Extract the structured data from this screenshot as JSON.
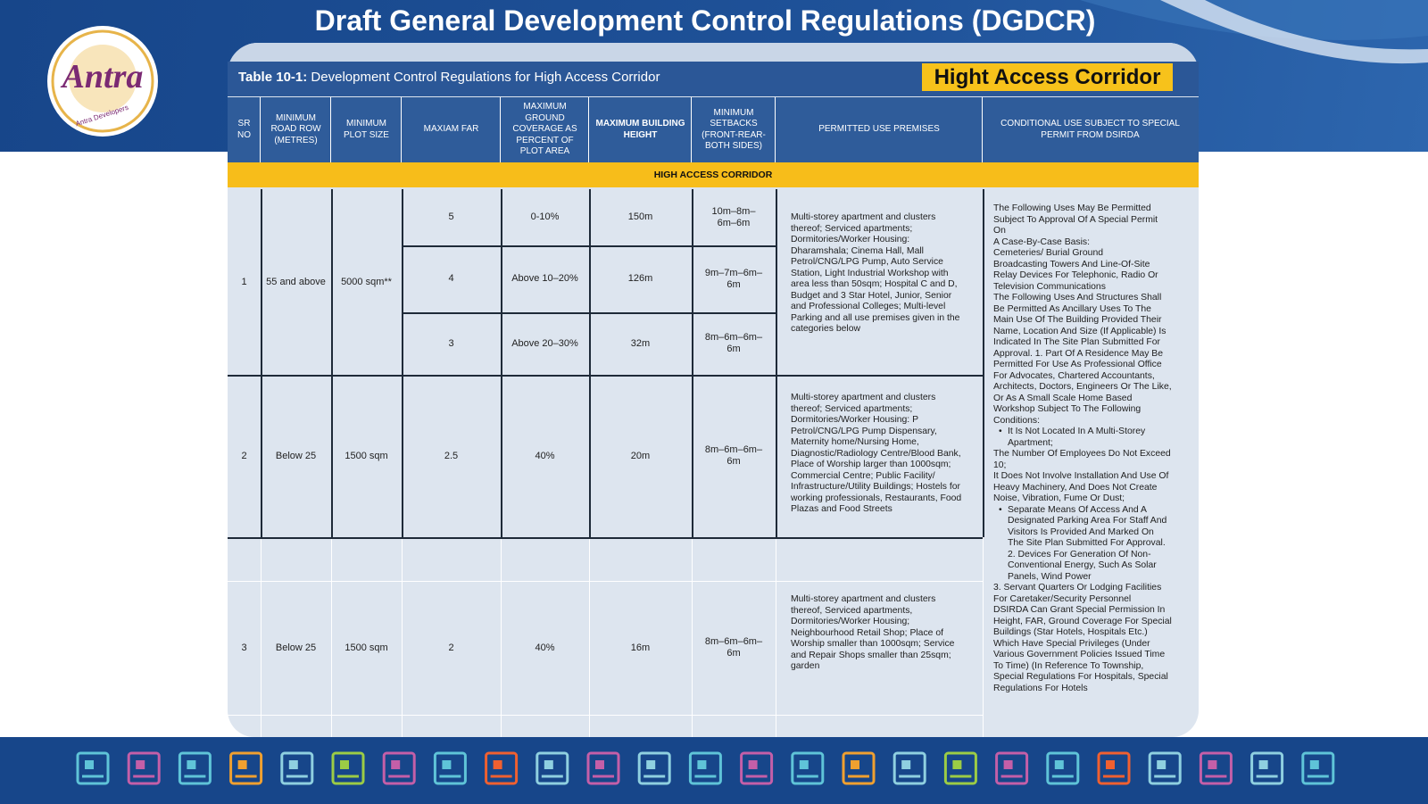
{
  "header": {
    "title": "Draft General Development Control Regulations (DGDCR)"
  },
  "logo": {
    "brand": "Antra",
    "tagline": "Antra Developers"
  },
  "table": {
    "caption_label": "Table 10-1:",
    "caption": "Development Control Regulations for High Access Corridor",
    "badge": "Hight Access Corridor",
    "columns": [
      "SR NO",
      "MINIMUM ROAD ROW (METRES)",
      "MINIMUM PLOT SIZE",
      "MAXIAM FAR",
      "MAXIMUM GROUND COVERAGE AS PERCENT OF PLOT AREA",
      "MAXIMUM BUILDING HEIGHT",
      "MINIMUM SETBACKS (FRONT-REAR-BOTH SIDES)",
      "PERMITTED USE PREMISES",
      "CONDITIONAL USE SUBJECT TO SPECIAL PERMIT FROM DSIRDA"
    ],
    "section": "HIGH ACCESS CORRIDOR",
    "rows": [
      {
        "sr": "1",
        "road_row": "55 and above",
        "plot_size": "5000 sqm**",
        "sub_rows": [
          [
            "5",
            "0-10%",
            "150m",
            "10m–8m–6m–6m"
          ],
          [
            "4",
            "Above 10–20%",
            "126m",
            "9m–7m–6m–6m"
          ],
          [
            "3",
            "Above 20–30%",
            "32m",
            "8m–6m–6m–6m"
          ]
        ],
        "permitted": "Multi-storey apartment and clusters thereof; Serviced apartments; Dormitories/Worker Housing: Dharamshala; Cinema Hall, Mall Petrol/CNG/LPG Pump, Auto Service Station, Light Industrial Workshop with area less than 50sqm; Hospital C and D, Budget and 3 Star Hotel, Junior, Senior and Professional Colleges; Multi-level Parking and all use premises given in the categories below"
      },
      {
        "sr": "2",
        "road_row": "Below 25",
        "plot_size": "1500 sqm",
        "sub_rows": [
          [
            "2.5",
            "40%",
            "20m",
            "8m–6m–6m–6m"
          ]
        ],
        "permitted": "Multi-storey apartment and clusters thereof; Serviced apartments; Dormitories/Worker Housing: P Petrol/CNG/LPG Pump Dispensary, Maternity home/Nursing Home, Diagnostic/Radiology Centre/Blood Bank, Place of Worship larger than 1000sqm; Commercial Centre; Public Facility/ Infrastructure/Utility Buildings; Hostels for working professionals, Restaurants, Food Plazas and Food Streets"
      },
      {
        "sr": "3",
        "road_row": "Below 25",
        "plot_size": "1500 sqm",
        "sub_rows": [
          [
            "2",
            "40%",
            "16m",
            "8m–6m–6m–6m"
          ]
        ],
        "permitted": "Multi-storey apartment and clusters thereof, Serviced apartments, Dormitories/Worker Housing; Neighbourhood Retail Shop; Place of Worship smaller than 1000sqm; Service and Repair Shops smaller than 25sqm; garden"
      }
    ],
    "conditional": [
      "The Following Uses May Be Permitted Subject To Approval Of A Special Permit On",
      "A Case-By-Case Basis:",
      "Cemeteries/ Burial Ground",
      "Broadcasting Towers And Line-Of-Site Relay Devices For Telephonic, Radio Or Television Communications",
      "The Following Uses And Structures Shall Be Permitted As Ancillary Uses To The Main Use Of The Building Provided Their Name, Location And Size (If Applicable) Is Indicated In The Site Plan Submitted For Approval. 1. Part Of A Residence May Be Permitted For Use As Professional Office For Advocates, Chartered Accountants, Architects, Doctors, Engineers Or The Like, Or As A Small Scale Home Based Workshop Subject To The Following Conditions:",
      "It Is Not Located In A Multi-Storey Apartment;",
      "The Number Of Employees Do Not Exceed 10;",
      "It Does Not Involve Installation And Use Of Heavy Machinery, And Does Not Create",
      "Noise, Vibration, Fume Or Dust;",
      "Separate Means Of Access And A Designated Parking Area For Staff And Visitors Is Provided And Marked On The Site Plan Submitted For Approval. 2. Devices For Generation Of Non-Conventional Energy, Such As Solar Panels, Wind Power",
      "3. Servant Quarters Or Lodging Facilities For Caretaker/Security Personnel",
      "DSIRDA Can Grant Special Permission In Height, FAR, Ground Coverage For Special Buildings (Star Hotels, Hospitals Etc.) Which Have Special Privileges (Under Various Government Policies Issued Time To Time) (In Reference To Township, Special Regulations For Hospitals, Special Regulations For Hotels"
    ]
  }
}
